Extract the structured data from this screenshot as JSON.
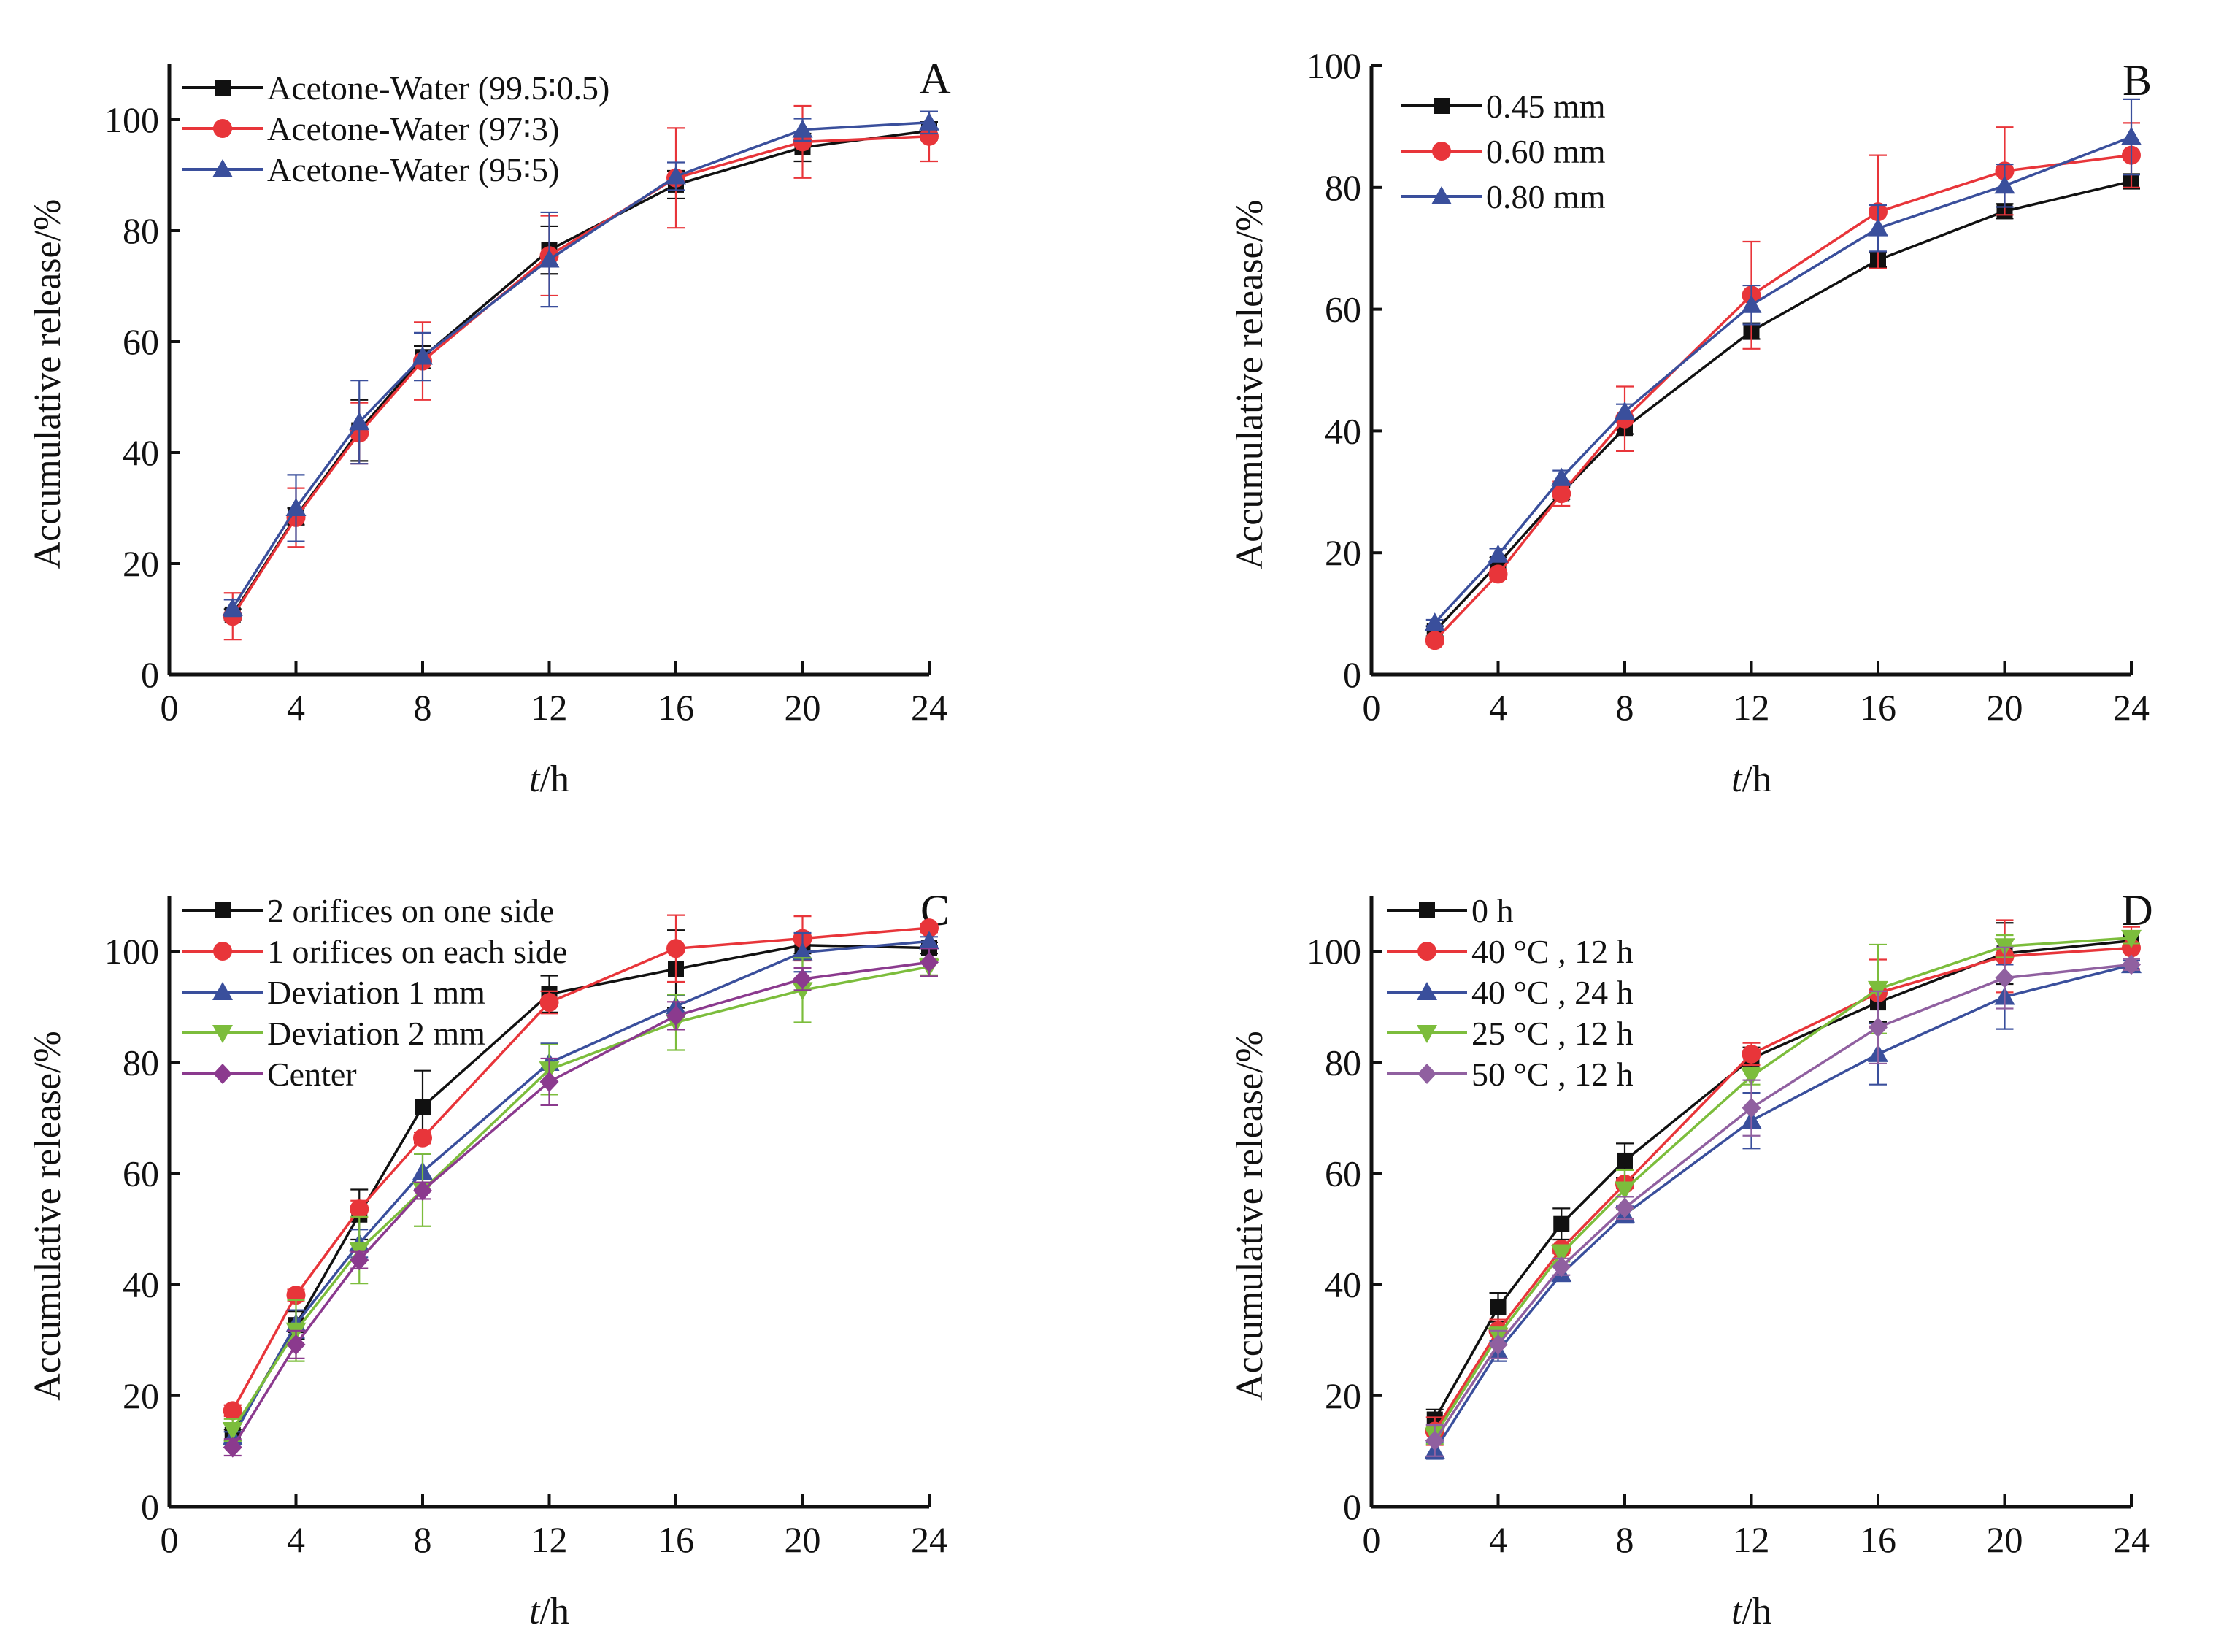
{
  "figure": {
    "panels": [
      "A",
      "B",
      "C",
      "D"
    ]
  },
  "chart_data": [
    {
      "panel": "A",
      "type": "line",
      "title": "",
      "panel_label": "A",
      "xlabel_italic": "t",
      "xlabel_rest": "/h",
      "ylabel": "Accumulative release/%",
      "xlim": [
        0,
        24
      ],
      "ylim": [
        0,
        110
      ],
      "xticks": [
        0,
        4,
        8,
        12,
        16,
        20,
        24
      ],
      "yticks": [
        0,
        20,
        40,
        60,
        80,
        100
      ],
      "grid": false,
      "legend_position": "top-left",
      "x": [
        2,
        4,
        6,
        8,
        12,
        16,
        20,
        24
      ],
      "series": [
        {
          "name": "Acetone-Water (99.5∶0.5)",
          "color": "#111111",
          "marker": "square",
          "values": [
            10.8,
            28.5,
            44.0,
            57.2,
            76.5,
            88.3,
            95.0,
            98.0
          ],
          "error": [
            1.0,
            1.5,
            5.5,
            2.0,
            4.3,
            2.5,
            2.5,
            1.6
          ]
        },
        {
          "name": "Acetone-Water (97∶3)",
          "color": "#e8353a",
          "marker": "circle",
          "values": [
            10.5,
            28.3,
            43.5,
            56.5,
            75.5,
            89.5,
            96.0,
            97.0
          ],
          "error": [
            4.2,
            5.3,
            5.5,
            7.0,
            7.2,
            9.0,
            6.5,
            4.5
          ]
        },
        {
          "name": "Acetone-Water (95∶5)",
          "color": "#3a4f9c",
          "marker": "triangle-up",
          "values": [
            12.0,
            30.0,
            45.5,
            57.3,
            74.8,
            89.8,
            98.2,
            99.5
          ],
          "error": [
            1.5,
            6.0,
            7.5,
            4.3,
            8.5,
            2.5,
            2.0,
            2.0
          ]
        }
      ]
    },
    {
      "panel": "B",
      "type": "line",
      "title": "",
      "panel_label": "B",
      "xlabel_italic": "t",
      "xlabel_rest": "/h",
      "ylabel": "Accumulative release/%",
      "xlim": [
        0,
        24
      ],
      "ylim": [
        0,
        100
      ],
      "xticks": [
        0,
        4,
        8,
        12,
        16,
        20,
        24
      ],
      "yticks": [
        0,
        20,
        40,
        60,
        80,
        100
      ],
      "grid": false,
      "legend_position": "top-left",
      "x": [
        2,
        4,
        6,
        8,
        12,
        16,
        20,
        24
      ],
      "series": [
        {
          "name": "0.45 mm",
          "color": "#111111",
          "marker": "square",
          "values": [
            7.1,
            18.2,
            29.8,
            40.5,
            56.4,
            68.1,
            76.1,
            81.0
          ],
          "error": [
            0.8,
            1.0,
            1.0,
            1.0,
            1.3,
            1.2,
            1.2,
            1.2
          ]
        },
        {
          "name": "0.60 mm",
          "color": "#e8353a",
          "marker": "circle",
          "values": [
            5.6,
            16.5,
            29.7,
            42.0,
            62.3,
            76.0,
            82.7,
            85.3
          ],
          "error": [
            0.6,
            0.8,
            2.0,
            5.3,
            8.8,
            9.3,
            7.2,
            5.3
          ]
        },
        {
          "name": "0.80 mm",
          "color": "#3a4f9c",
          "marker": "triangle-up",
          "values": [
            8.5,
            19.7,
            32.3,
            43.2,
            60.7,
            73.3,
            80.3,
            88.3
          ],
          "error": [
            0.5,
            1.0,
            1.2,
            1.2,
            3.2,
            3.8,
            3.5,
            6.2
          ]
        }
      ]
    },
    {
      "panel": "C",
      "type": "line",
      "title": "",
      "panel_label": "C",
      "xlabel_italic": "t",
      "xlabel_rest": "/h",
      "ylabel": "Accumulative release/%",
      "xlim": [
        0,
        24
      ],
      "ylim": [
        0,
        110
      ],
      "xticks": [
        0,
        4,
        8,
        12,
        16,
        20,
        24
      ],
      "yticks": [
        0,
        20,
        40,
        60,
        80,
        100
      ],
      "grid": false,
      "legend_position": "top-left",
      "x": [
        2,
        4,
        6,
        8,
        12,
        16,
        20,
        24
      ],
      "series": [
        {
          "name": "2 orifices on one side",
          "color": "#111111",
          "marker": "square",
          "values": [
            12.9,
            32.7,
            52.6,
            72.0,
            92.3,
            96.8,
            101.1,
            100.6
          ],
          "error": [
            1.0,
            2.5,
            4.5,
            6.5,
            3.3,
            7.0,
            1.5,
            1.0
          ]
        },
        {
          "name": "1 orifices on each side",
          "color": "#e8353a",
          "marker": "circle",
          "values": [
            17.3,
            38.1,
            53.6,
            66.4,
            90.8,
            100.5,
            102.3,
            104.2
          ],
          "error": [
            1.0,
            1.0,
            1.5,
            1.0,
            2.0,
            6.0,
            4.0,
            0.8
          ]
        },
        {
          "name": "Deviation 1 mm",
          "color": "#3a4f9c",
          "marker": "triangle-up",
          "values": [
            12.5,
            32.9,
            47.4,
            60.3,
            79.9,
            90.1,
            99.8,
            101.8
          ],
          "error": [
            1.0,
            2.5,
            2.5,
            3.2,
            3.5,
            2.0,
            3.5,
            0.8
          ]
        },
        {
          "name": "Deviation 2 mm",
          "color": "#7cbd3c",
          "marker": "triangle-down",
          "values": [
            13.8,
            31.7,
            46.2,
            57.0,
            78.7,
            87.2,
            93.0,
            97.2
          ],
          "error": [
            2.0,
            5.5,
            6.0,
            6.5,
            4.5,
            5.0,
            5.8,
            1.5
          ]
        },
        {
          "name": "Center",
          "color": "#8b3a8e",
          "marker": "diamond",
          "values": [
            10.7,
            29.2,
            44.4,
            56.9,
            76.5,
            88.4,
            95.0,
            98.0
          ],
          "error": [
            1.5,
            2.5,
            1.5,
            1.5,
            4.2,
            2.5,
            2.0,
            2.5
          ]
        }
      ]
    },
    {
      "panel": "D",
      "type": "line",
      "title": "",
      "panel_label": "D",
      "xlabel_italic": "t",
      "xlabel_rest": "/h",
      "ylabel": "Accumulative release/%",
      "xlim": [
        0,
        24
      ],
      "ylim": [
        0,
        110
      ],
      "xticks": [
        0,
        4,
        8,
        12,
        16,
        20,
        24
      ],
      "yticks": [
        0,
        20,
        40,
        60,
        80,
        100
      ],
      "grid": false,
      "legend_position": "top-left",
      "x": [
        2,
        4,
        6,
        8,
        12,
        16,
        20,
        24
      ],
      "series": [
        {
          "name": "0 h",
          "color": "#111111",
          "marker": "square",
          "values": [
            15.7,
            35.9,
            50.9,
            62.3,
            80.7,
            90.8,
            99.6,
            101.9
          ],
          "error": [
            1.8,
            2.6,
            2.8,
            3.1,
            2.0,
            3.5,
            5.5,
            1.5
          ]
        },
        {
          "name": "40 °C , 12 h",
          "color": "#e8353a",
          "marker": "circle",
          "values": [
            13.6,
            31.7,
            46.4,
            58.1,
            81.5,
            92.5,
            99.1,
            100.6
          ],
          "error": [
            2.5,
            2.0,
            0.8,
            0.8,
            2.0,
            6.0,
            6.5,
            3.8
          ]
        },
        {
          "name": "40 °C , 24 h",
          "color": "#3a4f9c",
          "marker": "triangle-up",
          "values": [
            10.1,
            28.0,
            41.9,
            52.6,
            69.5,
            81.5,
            91.8,
            97.5
          ],
          "error": [
            1.5,
            1.8,
            1.3,
            1.5,
            5.0,
            5.5,
            5.8,
            0.8
          ]
        },
        {
          "name": "25 °C , 12 h",
          "color": "#7cbd3c",
          "marker": "triangle-down",
          "values": [
            12.8,
            30.8,
            45.6,
            57.1,
            77.5,
            93.2,
            100.9,
            102.4
          ],
          "error": [
            1.5,
            1.5,
            1.5,
            3.5,
            1.5,
            8.0,
            2.0,
            1.0
          ]
        },
        {
          "name": "50 °C , 12 h",
          "color": "#9060a0",
          "marker": "diamond",
          "values": [
            11.9,
            29.2,
            43.2,
            53.8,
            71.8,
            86.3,
            95.2,
            97.6
          ],
          "error": [
            2.8,
            2.5,
            1.5,
            2.0,
            5.0,
            6.5,
            5.5,
            1.0
          ]
        }
      ]
    }
  ]
}
